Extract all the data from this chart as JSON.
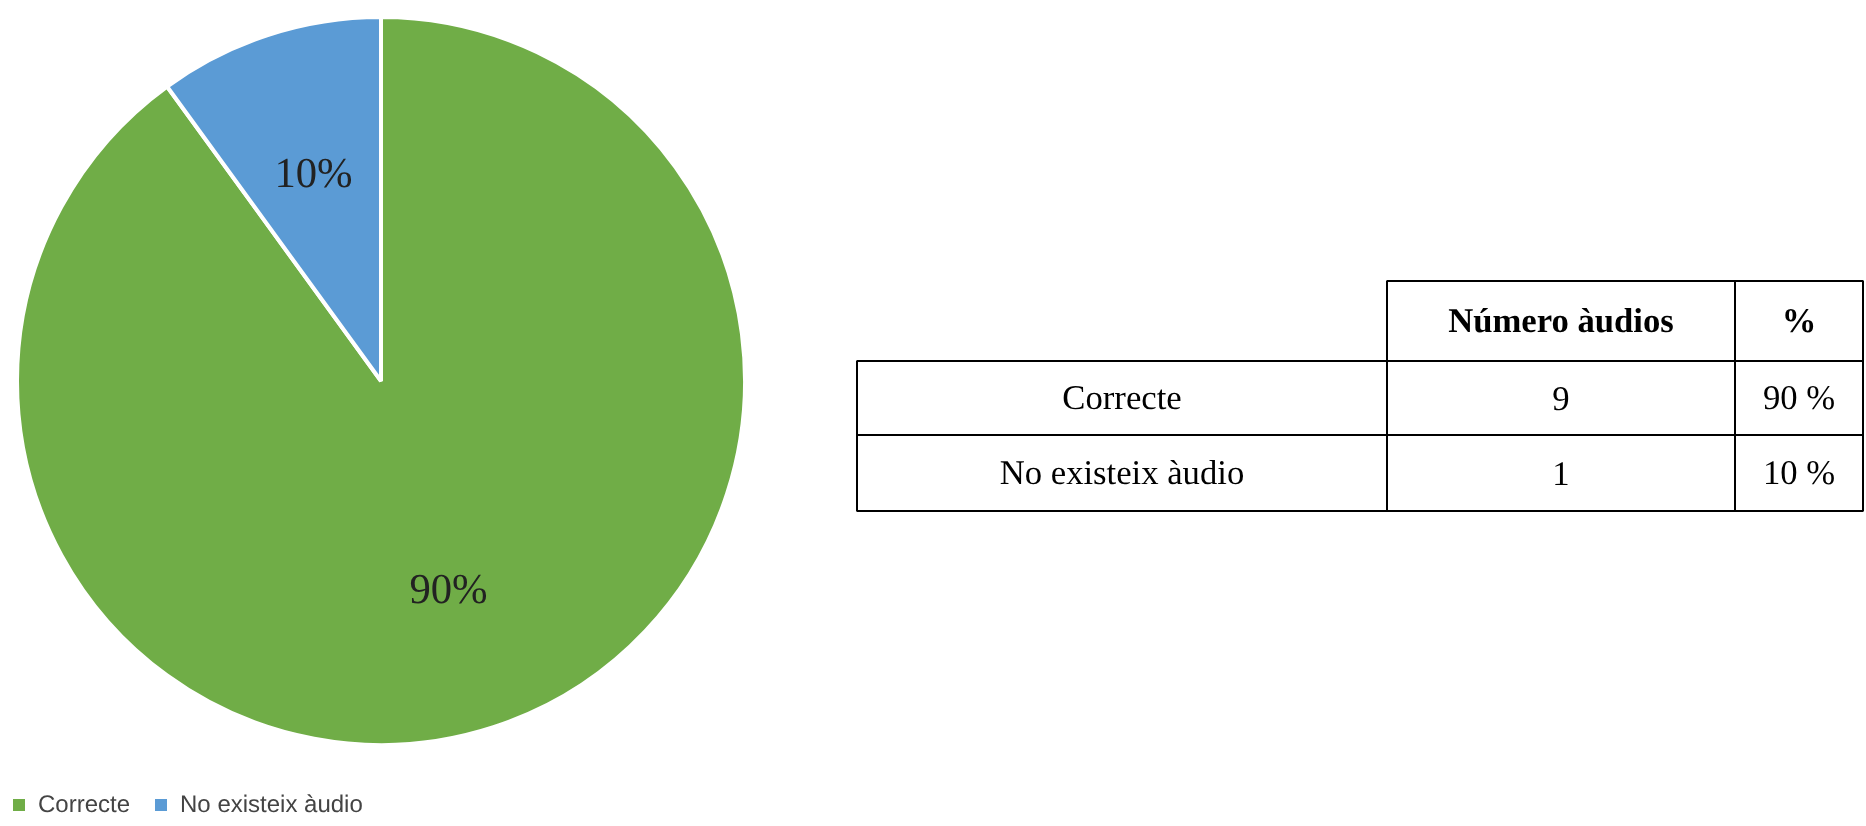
{
  "chart_data": [
    {
      "type": "pie",
      "categories": [
        "Correcte",
        "No existeix àudio"
      ],
      "values": [
        90,
        10
      ],
      "colors": [
        "#70ad47",
        "#5b9bd5"
      ],
      "value_labels": [
        "90%",
        "10%"
      ],
      "legend": "bottom left"
    },
    {
      "type": "other",
      "data_labels": true,
      "categories": [
        "Correcte",
        "No existeix àudio"
      ],
      "series": [
        {
          "name": "Número àudios",
          "values": [
            9,
            1
          ]
        },
        {
          "name": "%",
          "values": [
            90,
            10
          ],
          "value_labels": [
            "90 %",
            "10 %"
          ]
        }
      ]
    }
  ]
}
